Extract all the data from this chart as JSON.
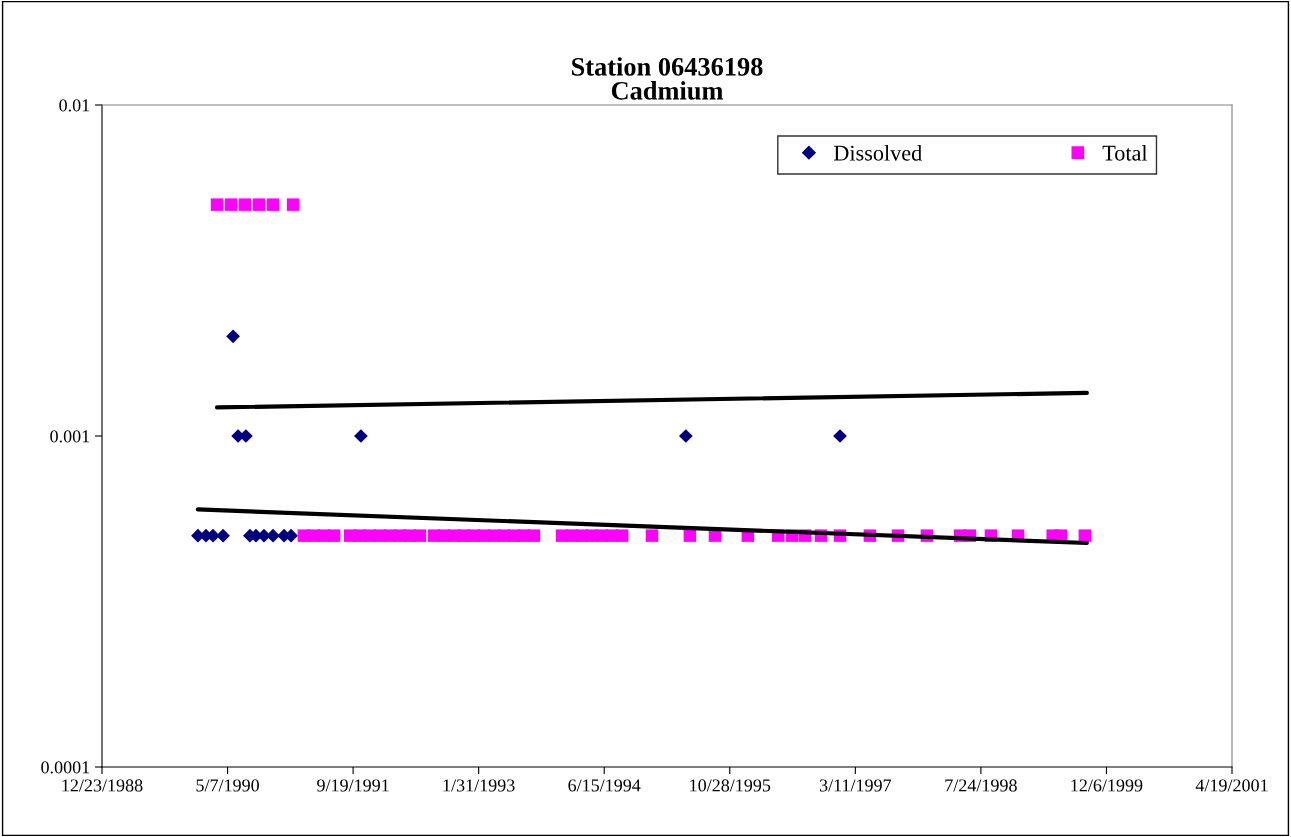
{
  "chart_data": {
    "type": "scatter",
    "title": "Station 06436198\nCadmium",
    "log": "y",
    "grid": false,
    "legend": "top right",
    "xlim": [
      "1988-12-23",
      "2001-04-19"
    ],
    "xticks": [
      {
        "value": "1988-12-23",
        "label": "12/23/1988"
      },
      {
        "value": "1990-05-07",
        "label": "5/7/1990"
      },
      {
        "value": "1991-09-19",
        "label": "9/19/1991"
      },
      {
        "value": "1993-01-31",
        "label": "1/31/1993"
      },
      {
        "value": "1994-06-15",
        "label": "6/15/1994"
      },
      {
        "value": "1995-10-28",
        "label": "10/28/1995"
      },
      {
        "value": "1997-03-11",
        "label": "3/11/1997"
      },
      {
        "value": "1998-07-24",
        "label": "7/24/1998"
      },
      {
        "value": "1999-12-06",
        "label": "12/6/1999"
      },
      {
        "value": "2001-04-19",
        "label": "4/19/2001"
      }
    ],
    "ylim": [
      0.0001,
      0.01
    ],
    "yticks": [
      0.0001,
      0.001,
      0.01
    ],
    "series": [
      {
        "name": "Dissolved",
        "marker": "diamond",
        "color": "#000080",
        "x": [
          "1990-01-09",
          "1990-02-10",
          "1990-03-10",
          "1990-04-19",
          "1990-05-29",
          "1990-06-18",
          "1990-07-19",
          "1990-08-04",
          "1990-08-28",
          "1990-09-29",
          "1990-11-04",
          "1990-12-18",
          "1991-01-15",
          "1991-10-20",
          "1995-05-06",
          "1997-01-09"
        ],
        "values": [
          0.0005,
          0.0005,
          0.0005,
          0.0005,
          0.002,
          0.001,
          0.001,
          0.0005,
          0.0005,
          0.0005,
          0.0005,
          0.0005,
          0.0005,
          0.001,
          0.001,
          0.001
        ]
      },
      {
        "name": "Total",
        "marker": "square",
        "color": "#ff00ff",
        "x": [
          "1990-03-26",
          "1990-05-21",
          "1990-07-15",
          "1990-09-09",
          "1990-11-04",
          "1991-01-23",
          "1991-03-07",
          "1991-04-16",
          "1991-05-26",
          "1991-07-05",
          "1991-09-07",
          "1991-10-16",
          "1991-11-25",
          "1992-01-04",
          "1992-02-13",
          "1992-03-24",
          "1992-05-02",
          "1992-06-11",
          "1992-08-06",
          "1992-09-15",
          "1992-10-25",
          "1992-12-03",
          "1993-01-12",
          "1993-02-21",
          "1993-04-02",
          "1993-05-12",
          "1993-06-21",
          "1993-07-30",
          "1993-09-08",
          "1993-12-29",
          "1994-02-07",
          "1994-03-18",
          "1994-04-27",
          "1994-06-06",
          "1994-07-16",
          "1994-08-25",
          "1994-12-22",
          "1995-05-22",
          "1995-08-30",
          "1996-01-08",
          "1996-05-08",
          "1996-07-03",
          "1996-08-23",
          "1996-10-25",
          "1997-01-09",
          "1997-05-08",
          "1997-08-28",
          "1997-12-21",
          "1998-05-02",
          "1998-06-10",
          "1998-09-02",
          "1998-12-19",
          "1999-05-06",
          "1999-06-08",
          "1999-09-11"
        ],
        "values": [
          0.005,
          0.005,
          0.005,
          0.005,
          0.005,
          0.005,
          0.0005,
          0.0005,
          0.0005,
          0.0005,
          0.0005,
          0.0005,
          0.0005,
          0.0005,
          0.0005,
          0.0005,
          0.0005,
          0.0005,
          0.0005,
          0.0005,
          0.0005,
          0.0005,
          0.0005,
          0.0005,
          0.0005,
          0.0005,
          0.0005,
          0.0005,
          0.0005,
          0.0005,
          0.0005,
          0.0005,
          0.0005,
          0.0005,
          0.0005,
          0.0005,
          0.0005,
          0.0005,
          0.0005,
          0.0005,
          0.0005,
          0.0005,
          0.0005,
          0.0005,
          0.0005,
          0.0005,
          0.0005,
          0.0005,
          0.0005,
          0.0005,
          0.0005,
          0.0005,
          0.0005,
          0.0005,
          0.0005
        ]
      },
      {
        "type": "line",
        "marker": "none",
        "color": "#000000",
        "x": [
          "1990-03-26",
          "1999-09-19"
        ],
        "values": [
          0.00122,
          0.00135
        ]
      },
      {
        "type": "line",
        "marker": "none",
        "color": "#000000",
        "x": [
          "1990-01-09",
          "1999-09-19"
        ],
        "values": [
          0.0006,
          0.000475
        ]
      }
    ]
  }
}
